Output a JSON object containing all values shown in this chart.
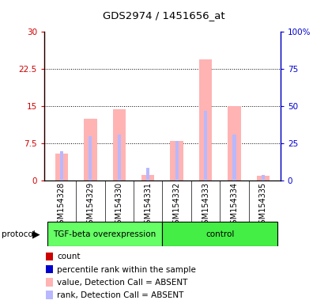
{
  "title": "GDS2974 / 1451656_at",
  "samples": [
    "GSM154328",
    "GSM154329",
    "GSM154330",
    "GSM154331",
    "GSM154332",
    "GSM154333",
    "GSM154334",
    "GSM154335"
  ],
  "pink_bar_values": [
    5.5,
    12.5,
    14.5,
    1.2,
    8.0,
    24.5,
    15.0,
    1.0
  ],
  "blue_bar_values_right_scale": [
    20.0,
    30.0,
    31.0,
    8.5,
    27.0,
    47.0,
    31.0,
    4.0
  ],
  "ylim_left": [
    0,
    30
  ],
  "ylim_right": [
    0,
    100
  ],
  "yticks_left": [
    0,
    7.5,
    15,
    22.5,
    30
  ],
  "yticks_right": [
    0,
    25,
    50,
    75,
    100
  ],
  "ytick_labels_left": [
    "0",
    "7.5",
    "15",
    "22.5",
    "30"
  ],
  "ytick_labels_right": [
    "0",
    "25",
    "50",
    "75",
    "100%"
  ],
  "left_axis_color": "#cc0000",
  "right_axis_color": "#0000cc",
  "legend_items": [
    {
      "label": "count",
      "color": "#cc0000"
    },
    {
      "label": "percentile rank within the sample",
      "color": "#0000cc"
    },
    {
      "label": "value, Detection Call = ABSENT",
      "color": "#ffb3b3"
    },
    {
      "label": "rank, Detection Call = ABSENT",
      "color": "#b8b8ff"
    }
  ],
  "group1_label": "TGF-beta overexpression",
  "group2_label": "control",
  "group1_color": "#66ff66",
  "group2_color": "#44ee44",
  "group1_indices": [
    0,
    1,
    2,
    3
  ],
  "group2_indices": [
    4,
    5,
    6,
    7
  ]
}
